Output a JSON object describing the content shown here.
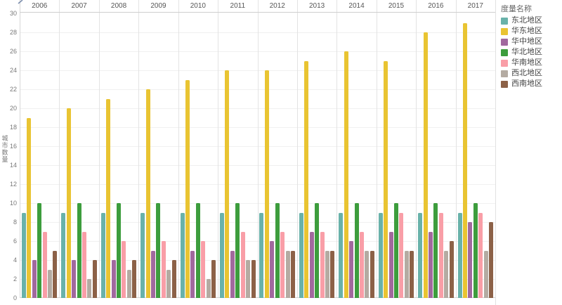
{
  "chart_data": {
    "type": "bar",
    "title": "",
    "ylabel": "城市数量",
    "legend_title": "度量名称",
    "legend_position": "right",
    "grid": true,
    "ylim": [
      0,
      30
    ],
    "yticks": [
      0,
      2,
      4,
      6,
      8,
      10,
      12,
      14,
      16,
      18,
      20,
      22,
      24,
      26,
      28,
      30
    ],
    "categories": [
      "2006",
      "2007",
      "2008",
      "2009",
      "2010",
      "2011",
      "2012",
      "2013",
      "2014",
      "2015",
      "2016",
      "2017"
    ],
    "series": [
      {
        "name": "东北地区",
        "color": "#69b2aa",
        "values": [
          9,
          9,
          9,
          9,
          9,
          9,
          9,
          9,
          9,
          9,
          9,
          9
        ]
      },
      {
        "name": "华东地区",
        "color": "#e9c432",
        "values": [
          19,
          20,
          21,
          22,
          23,
          24,
          24,
          25,
          26,
          25,
          28,
          29
        ]
      },
      {
        "name": "华中地区",
        "color": "#a1699e",
        "values": [
          4,
          4,
          4,
          5,
          5,
          5,
          6,
          7,
          6,
          7,
          7,
          8
        ]
      },
      {
        "name": "华北地区",
        "color": "#3d9d3d",
        "values": [
          10,
          10,
          10,
          10,
          10,
          10,
          10,
          10,
          10,
          10,
          10,
          10
        ]
      },
      {
        "name": "华南地区",
        "color": "#f99ea7",
        "values": [
          7,
          7,
          6,
          6,
          6,
          7,
          7,
          7,
          7,
          9,
          9,
          9
        ]
      },
      {
        "name": "西北地区",
        "color": "#b4aba2",
        "values": [
          3,
          2,
          3,
          3,
          2,
          4,
          5,
          5,
          5,
          5,
          5,
          5
        ]
      },
      {
        "name": "西南地区",
        "color": "#8c6147",
        "values": [
          5,
          4,
          4,
          4,
          4,
          4,
          5,
          5,
          5,
          5,
          6,
          8
        ]
      }
    ]
  }
}
